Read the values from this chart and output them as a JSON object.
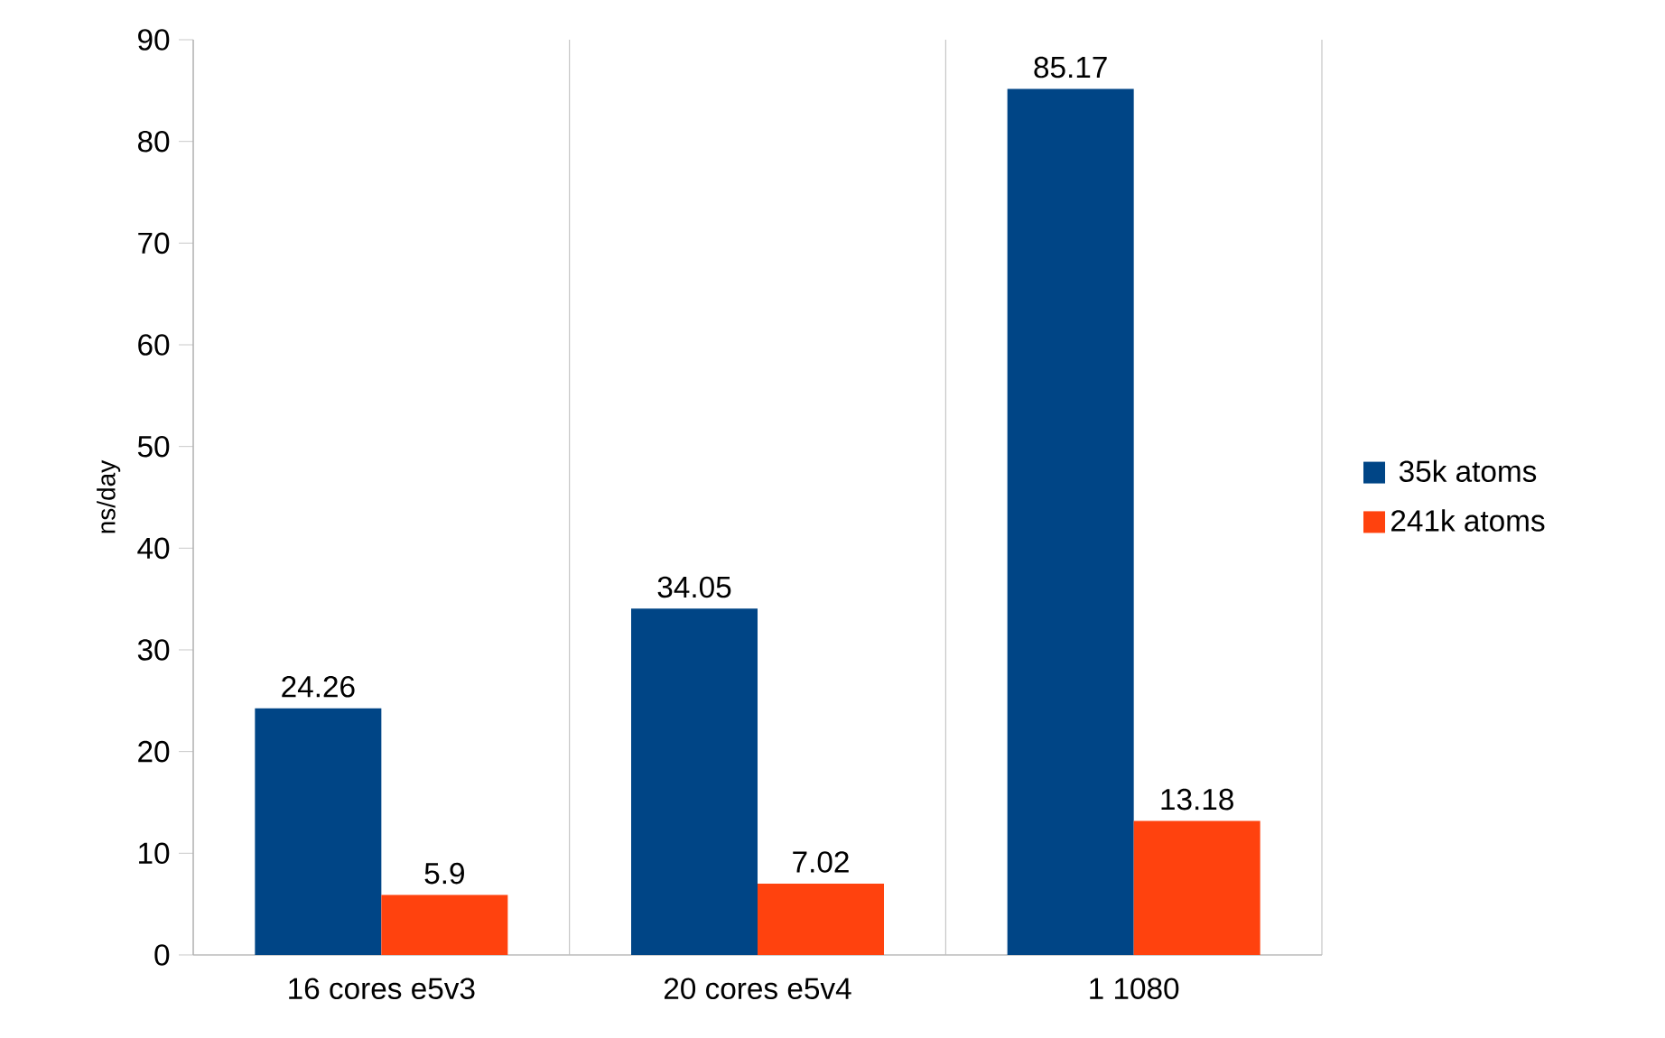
{
  "chart_data": {
    "type": "bar",
    "ylabel": "ns/day",
    "categories": [
      "16 cores e5v3",
      "20 cores e5v4",
      "1 1080"
    ],
    "series": [
      {
        "name": "35k atoms",
        "color": "#004586",
        "values": [
          24.26,
          34.05,
          85.17
        ]
      },
      {
        "name": "241k atoms",
        "color": "#ff420e",
        "values": [
          5.9,
          7.02,
          13.18
        ]
      }
    ],
    "ylim": [
      0,
      90
    ],
    "yticks": [
      0,
      10,
      20,
      30,
      40,
      50,
      60,
      70,
      80,
      90
    ],
    "grid": "x",
    "legend": "right",
    "data_labels": true
  }
}
